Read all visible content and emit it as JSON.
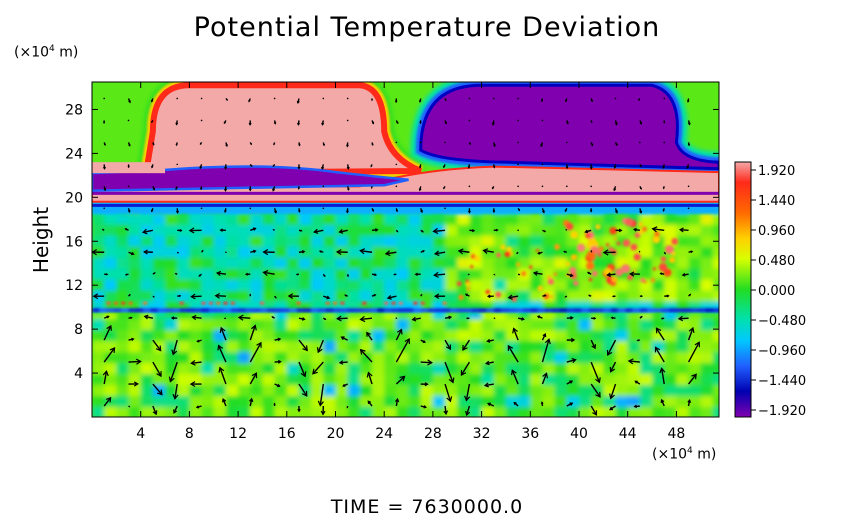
{
  "chart_data": {
    "type": "heatmap",
    "title": "Potential Temperature Deviation",
    "xlabel": "",
    "x_unit": "(×10⁴ m)",
    "ylabel": "Height",
    "y_unit": "(×10⁴ m)",
    "xlim": [
      0,
      51.5
    ],
    "ylim": [
      0,
      30.5
    ],
    "x_ticks": [
      4,
      8,
      12,
      16,
      20,
      24,
      28,
      32,
      36,
      40,
      44,
      48
    ],
    "y_ticks": [
      4,
      8,
      12,
      16,
      20,
      24,
      28
    ],
    "colorbar": {
      "labels": [
        "1.920",
        "1.440",
        "0.960",
        "0.480",
        "0.000",
        "−0.480",
        "−0.960",
        "−1.440",
        "−1.920"
      ],
      "values": [
        1.92,
        1.44,
        0.96,
        0.48,
        0.0,
        -0.48,
        -0.96,
        -1.44,
        -1.92
      ],
      "colors": [
        "#f4a9a9",
        "#ff2a1a",
        "#ffa500",
        "#ffff00",
        "#22dd22",
        "#00e0e0",
        "#2080ff",
        "#0000c0",
        "#8000b0"
      ]
    },
    "regions": [
      {
        "name": "warm-anomaly-upper-left",
        "x_range": [
          4,
          24.5
        ],
        "y_range": [
          22.5,
          30
        ],
        "value": 1.92
      },
      {
        "name": "cold-anomaly-upper-right",
        "x_range": [
          27,
          51
        ],
        "y_range": [
          22.8,
          30
        ],
        "value": -1.92
      },
      {
        "name": "cold-band-left",
        "x_range": [
          0,
          26
        ],
        "y_range": [
          20.4,
          22.2
        ],
        "value": -1.92
      },
      {
        "name": "warm-band",
        "x_range": [
          0,
          51.5
        ],
        "y_range": [
          19.3,
          21.0
        ],
        "value": 1.92
      },
      {
        "name": "warm-band-right",
        "x_range": [
          28,
          51.5
        ],
        "y_range": [
          20.5,
          22.8
        ],
        "value": 1.92
      },
      {
        "name": "tropopause-cold-line",
        "x_range": [
          0,
          51.5
        ],
        "y_range": [
          18.8,
          19.4
        ],
        "value": -1.44
      },
      {
        "name": "mid-layer",
        "x_range": [
          0,
          51.5
        ],
        "y_range": [
          10,
          18.8
        ],
        "value": -0.2
      },
      {
        "name": "lower-boundary-line",
        "x_range": [
          0,
          51.5
        ],
        "y_range": [
          9.2,
          10.2
        ],
        "value": -0.96
      },
      {
        "name": "lower-layer",
        "x_range": [
          0,
          51.5
        ],
        "y_range": [
          0,
          9.2
        ],
        "value": 0.3
      }
    ],
    "vector_field": "wind arrows overlaid on color field"
  },
  "time_label": "TIME = 7630000.0"
}
